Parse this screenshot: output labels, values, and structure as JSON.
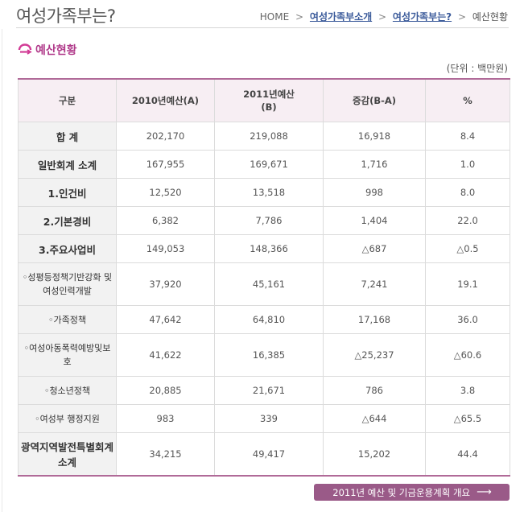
{
  "header": {
    "title": "여성가족부는?",
    "breadcrumb": [
      "HOME",
      "여성가족부소개",
      "여성가족부는?",
      "예산현황"
    ]
  },
  "section": {
    "heading": "예산현황",
    "icon": "pink-circle-arrow-icon"
  },
  "unit": "(단위 : 백만원)",
  "table": {
    "headers": [
      "구분",
      "2010년예산(A)",
      "2011년예산\n(B)",
      "증감(B-A)",
      "%"
    ],
    "rows": [
      {
        "label": "합 계",
        "a": "202,170",
        "b": "219,088",
        "diff": "16,918",
        "pct": "8.4",
        "kind": "main"
      },
      {
        "label": "일반회계 소계",
        "a": "167,955",
        "b": "169,671",
        "diff": "1,716",
        "pct": "1.0",
        "kind": "main"
      },
      {
        "label": "1.인건비",
        "a": "12,520",
        "b": "13,518",
        "diff": "998",
        "pct": "8.0",
        "kind": "main"
      },
      {
        "label": "2.기본경비",
        "a": "6,382",
        "b": "7,786",
        "diff": "1,404",
        "pct": "22.0",
        "kind": "main"
      },
      {
        "label": "3.주요사업비",
        "a": "149,053",
        "b": "148,366",
        "diff": "△687",
        "pct": "△0.5",
        "kind": "main"
      },
      {
        "label": "◦성평등정책기반강화 및 여성인력개발",
        "a": "37,920",
        "b": "45,161",
        "diff": "7,241",
        "pct": "19.1",
        "kind": "sub"
      },
      {
        "label": "◦가족정책",
        "a": "47,642",
        "b": "64,810",
        "diff": "17,168",
        "pct": "36.0",
        "kind": "sub"
      },
      {
        "label": "◦여성아동폭력예방및보호",
        "a": "41,622",
        "b": "16,385",
        "diff": "△25,237",
        "pct": "△60.6",
        "kind": "sub"
      },
      {
        "label": "◦청소년정책",
        "a": "20,885",
        "b": "21,671",
        "diff": "786",
        "pct": "3.8",
        "kind": "sub"
      },
      {
        "label": "◦여성부 행정지원",
        "a": "983",
        "b": "339",
        "diff": "△644",
        "pct": "△65.5",
        "kind": "sub"
      },
      {
        "label": "광역지역발전특별회계 소계",
        "a": "34,215",
        "b": "49,417",
        "diff": "15,202",
        "pct": "44.4",
        "kind": "main"
      }
    ]
  },
  "button": {
    "label": "2011년 예산 및 기금운용계획 개요",
    "arrow": "⟶"
  },
  "colors": {
    "accent": "#b03a8a",
    "border": "#b06a98",
    "header_bg": "#f7eef3",
    "button_bg": "#9a5a88"
  }
}
